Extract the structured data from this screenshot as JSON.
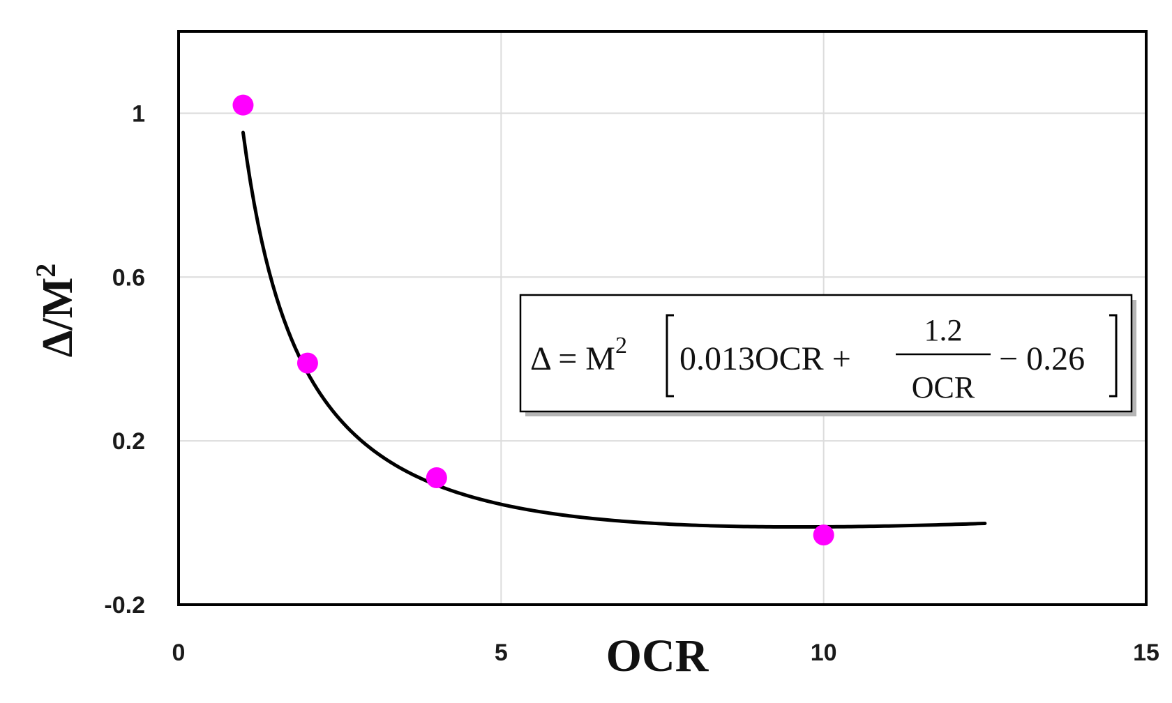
{
  "chart_data": {
    "type": "scatter",
    "xlabel": "OCR",
    "ylabel": "Δ/M",
    "ylabel_superscript": "2",
    "xlim": [
      0,
      15
    ],
    "ylim": [
      -0.2,
      1.2
    ],
    "x_ticks": [
      0,
      5,
      10,
      15
    ],
    "x_tick_labels": [
      "0",
      "5",
      "10",
      "15"
    ],
    "y_ticks": [
      -0.2,
      0.2,
      0.6,
      1.0
    ],
    "y_tick_labels": [
      "-0.2",
      "0.2",
      "0.6",
      "1"
    ],
    "grid": true,
    "series": [
      {
        "type": "scatter",
        "x": [
          1,
          2,
          4,
          10
        ],
        "y": [
          1.02,
          0.39,
          0.11,
          -0.03
        ],
        "color": "#ff00ff"
      },
      {
        "type": "line",
        "function": "0.013*OCR + 1.2/OCR - 0.26",
        "x_range": [
          1,
          12.5
        ],
        "color": "#000000"
      }
    ],
    "annotation": {
      "lhs": "Δ = M",
      "lhs_superscript": "2",
      "bracket_prefix": "0.013OCR +",
      "fraction_numerator": "1.2",
      "fraction_denominator": "OCR",
      "bracket_suffix": "− 0.26"
    }
  }
}
